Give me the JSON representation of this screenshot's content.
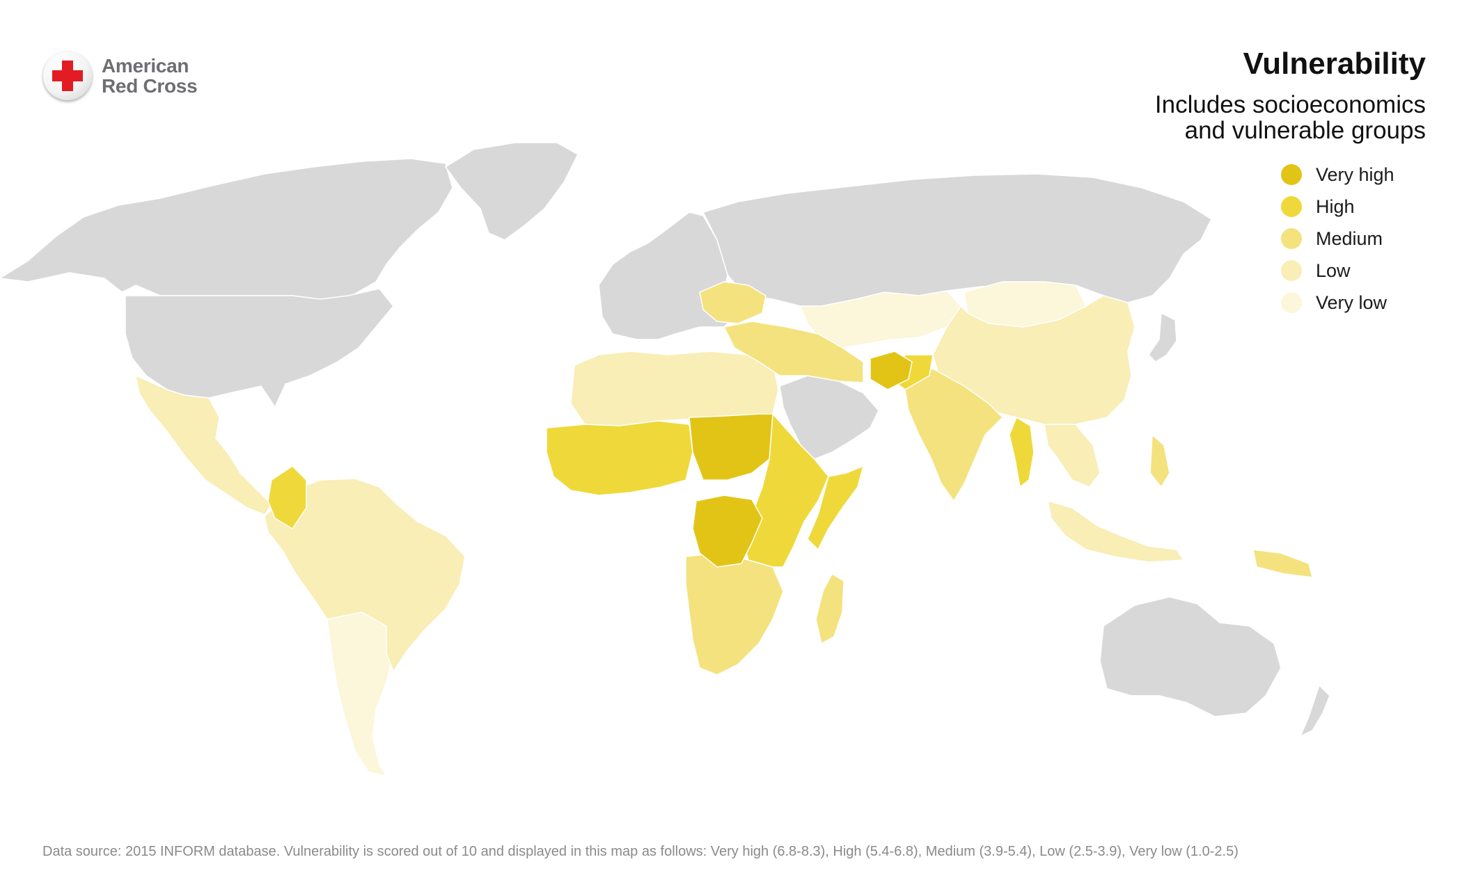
{
  "logo": {
    "line1": "American",
    "line2": "Red Cross",
    "cross_color": "#e31b23"
  },
  "title": "Vulnerability",
  "subtitle": {
    "line1": "Includes socioeconomics",
    "line2": "and vulnerable groups"
  },
  "legend": [
    {
      "label": "Very high",
      "color": "#e2c417"
    },
    {
      "label": "High",
      "color": "#efd93a"
    },
    {
      "label": "Medium",
      "color": "#f4e27e"
    },
    {
      "label": "Low",
      "color": "#f8eeb6"
    },
    {
      "label": "Very low",
      "color": "#fcf6da"
    }
  ],
  "no_data_color": "#d8d8d8",
  "footer": "Data source: 2015 INFORM database. Vulnerability is scored out of 10 and displayed in this map as follows: Very high (6.8-8.3), High (5.4-6.8), Medium (3.9-5.4), Low (2.5-3.9), Very low (1.0-2.5)"
}
